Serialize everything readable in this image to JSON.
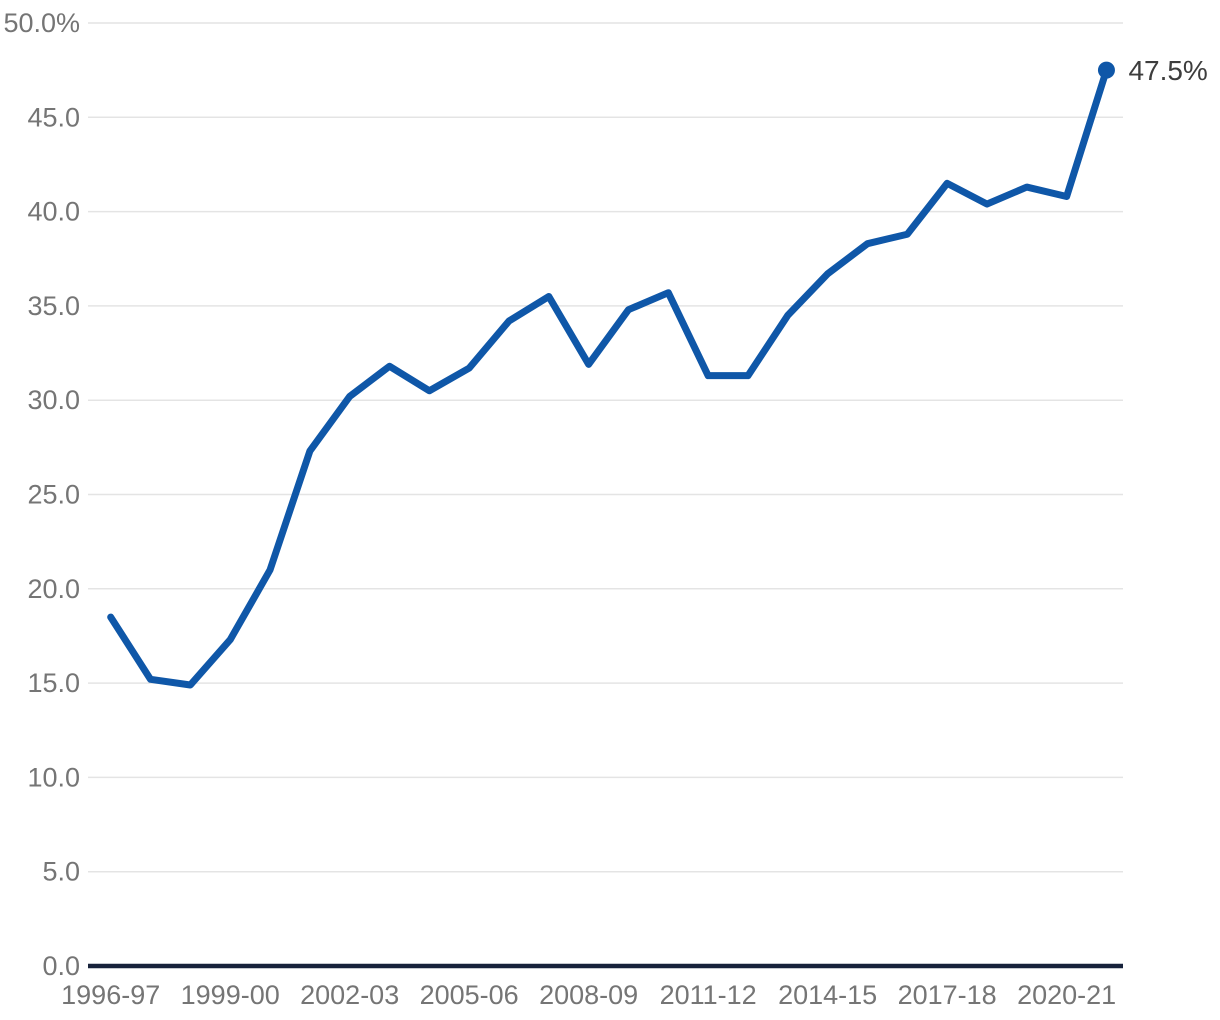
{
  "chart_data": {
    "type": "line",
    "title": "",
    "xlabel": "",
    "ylabel": "",
    "categories": [
      "1996-97",
      "1997-98",
      "1998-99",
      "1999-00",
      "2000-01",
      "2001-02",
      "2002-03",
      "2003-04",
      "2004-05",
      "2005-06",
      "2006-07",
      "2007-08",
      "2008-09",
      "2009-10",
      "2010-11",
      "2011-12",
      "2012-13",
      "2013-14",
      "2014-15",
      "2015-16",
      "2016-17",
      "2017-18",
      "2018-19",
      "2019-20",
      "2020-21",
      "2021-22"
    ],
    "values": [
      18.5,
      15.2,
      14.9,
      17.3,
      21.0,
      27.3,
      30.2,
      31.8,
      30.5,
      31.7,
      34.2,
      35.5,
      31.9,
      34.8,
      35.7,
      31.3,
      31.3,
      34.5,
      36.7,
      38.3,
      38.8,
      41.5,
      40.4,
      41.3,
      40.8,
      47.5
    ],
    "ylim": [
      0,
      50
    ],
    "y_ticks": [
      {
        "value": 0,
        "label": "0.0"
      },
      {
        "value": 5,
        "label": "5.0"
      },
      {
        "value": 10,
        "label": "10.0"
      },
      {
        "value": 15,
        "label": "15.0"
      },
      {
        "value": 20,
        "label": "20.0"
      },
      {
        "value": 25,
        "label": "25.0"
      },
      {
        "value": 30,
        "label": "30.0"
      },
      {
        "value": 35,
        "label": "35.0"
      },
      {
        "value": 40,
        "label": "40.0"
      },
      {
        "value": 45,
        "label": "45.0"
      },
      {
        "value": 50,
        "label": "50.0%"
      }
    ],
    "x_tick_labels": [
      "1996-97",
      "1999-00",
      "2002-03",
      "2005-06",
      "2008-09",
      "2011-12",
      "2014-15",
      "2017-18",
      "2020-21"
    ],
    "x_tick_every": 3,
    "end_point_label": "47.5%",
    "grid": true,
    "legend": "none",
    "colors": {
      "line": "#0F57A8",
      "marker": "#0F57A8",
      "axis": "#17223B",
      "gridline": "#E4E4E4",
      "tick_label": "#757575",
      "end_label": "#3D3D3D"
    }
  }
}
